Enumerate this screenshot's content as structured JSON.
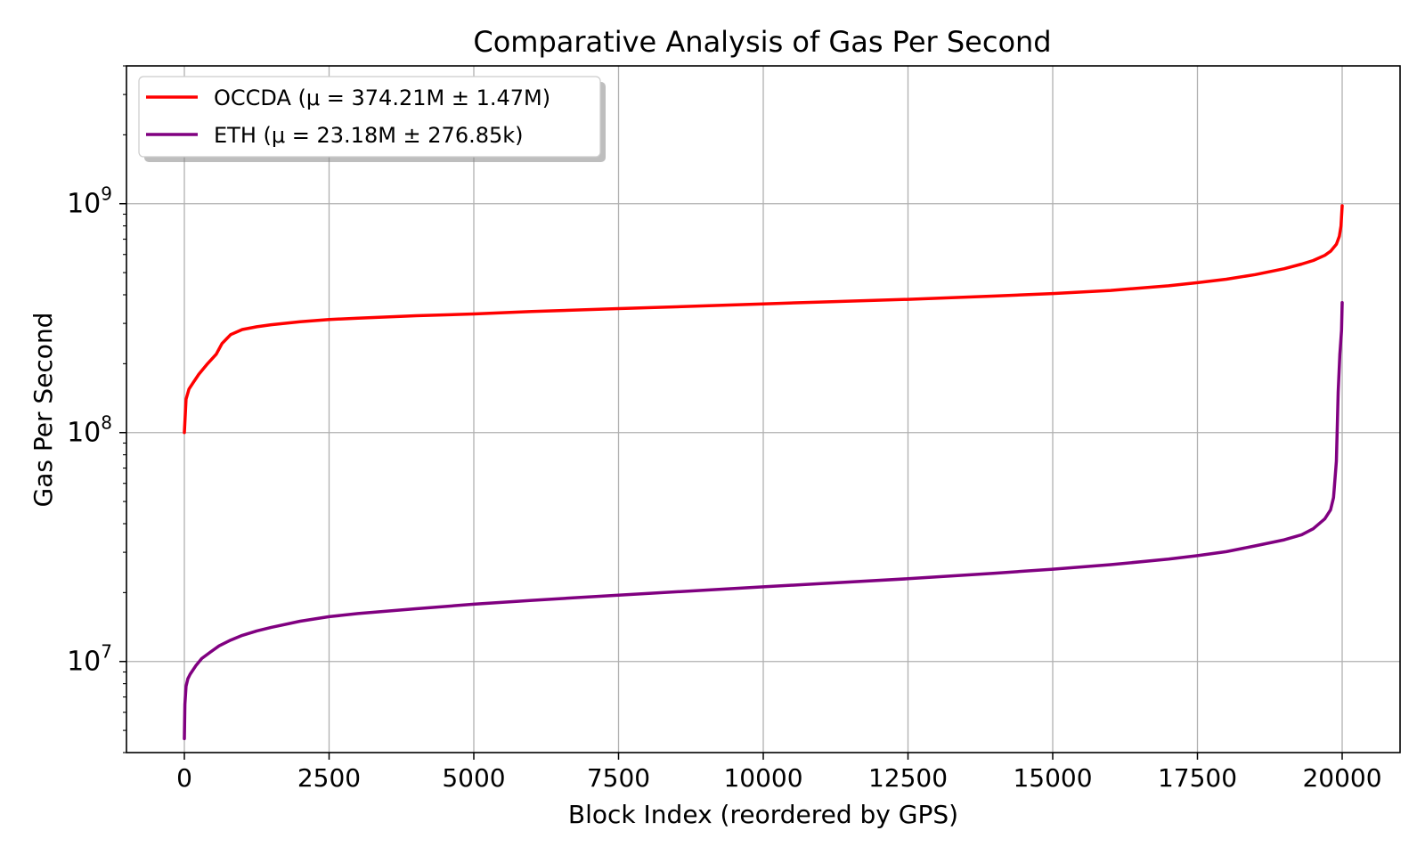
{
  "chart_data": {
    "type": "line",
    "title": "Comparative Analysis of Gas Per Second",
    "xlabel": "Block Index (reordered by GPS)",
    "ylabel": "Gas Per Second",
    "xlim": [
      -1000,
      21000
    ],
    "ylim": [
      4000000,
      4000000000
    ],
    "yscale": "log",
    "grid": true,
    "legend_position": "upper-left",
    "x_ticks": [
      0,
      2500,
      5000,
      7500,
      10000,
      12500,
      15000,
      17500,
      20000
    ],
    "x_tick_labels": [
      "0",
      "2500",
      "5000",
      "7500",
      "10000",
      "12500",
      "15000",
      "17500",
      "20000"
    ],
    "y_ticks": [
      10000000,
      100000000,
      1000000000
    ],
    "y_tick_labels": [
      {
        "base": "10",
        "exp": "7"
      },
      {
        "base": "10",
        "exp": "8"
      },
      {
        "base": "10",
        "exp": "9"
      }
    ],
    "series": [
      {
        "name": "OCCDA (μ = 374.21M ± 1.47M)",
        "color": "#ff0000",
        "x": [
          0,
          30,
          80,
          150,
          250,
          400,
          550,
          650,
          800,
          1000,
          1250,
          1500,
          2000,
          2500,
          3000,
          4000,
          5000,
          6000,
          7500,
          9000,
          10000,
          11000,
          12500,
          14000,
          15000,
          16000,
          17000,
          17500,
          18000,
          18500,
          19000,
          19300,
          19500,
          19700,
          19800,
          19900,
          19950,
          19980,
          20000
        ],
        "y": [
          100000000,
          140000000,
          155000000,
          165000000,
          180000000,
          200000000,
          220000000,
          245000000,
          268000000,
          282000000,
          290000000,
          296000000,
          305000000,
          312000000,
          316000000,
          324000000,
          330000000,
          338000000,
          348000000,
          358000000,
          365000000,
          372000000,
          382000000,
          395000000,
          405000000,
          418000000,
          438000000,
          452000000,
          468000000,
          490000000,
          520000000,
          545000000,
          565000000,
          595000000,
          620000000,
          665000000,
          720000000,
          800000000,
          980000000
        ]
      },
      {
        "name": "ETH (μ = 23.18M ± 276.85k)",
        "color": "#800080",
        "x": [
          0,
          10,
          30,
          60,
          100,
          200,
          300,
          450,
          600,
          800,
          1000,
          1250,
          1500,
          2000,
          2500,
          3000,
          4000,
          5000,
          6000,
          7500,
          9000,
          10000,
          11000,
          12500,
          14000,
          15000,
          16000,
          17000,
          17500,
          18000,
          18500,
          19000,
          19300,
          19500,
          19700,
          19800,
          19850,
          19900,
          19930,
          19960,
          19990,
          20000
        ],
        "y": [
          4600000,
          6500000,
          7800000,
          8400000,
          8800000,
          9600000,
          10300000,
          11000000,
          11700000,
          12400000,
          13000000,
          13600000,
          14100000,
          15000000,
          15700000,
          16200000,
          17000000,
          17800000,
          18500000,
          19500000,
          20500000,
          21200000,
          21900000,
          23000000,
          24300000,
          25300000,
          26500000,
          28000000,
          29000000,
          30200000,
          32000000,
          34000000,
          35800000,
          38000000,
          42000000,
          46000000,
          52000000,
          75000000,
          150000000,
          220000000,
          280000000,
          370000000
        ]
      }
    ]
  }
}
